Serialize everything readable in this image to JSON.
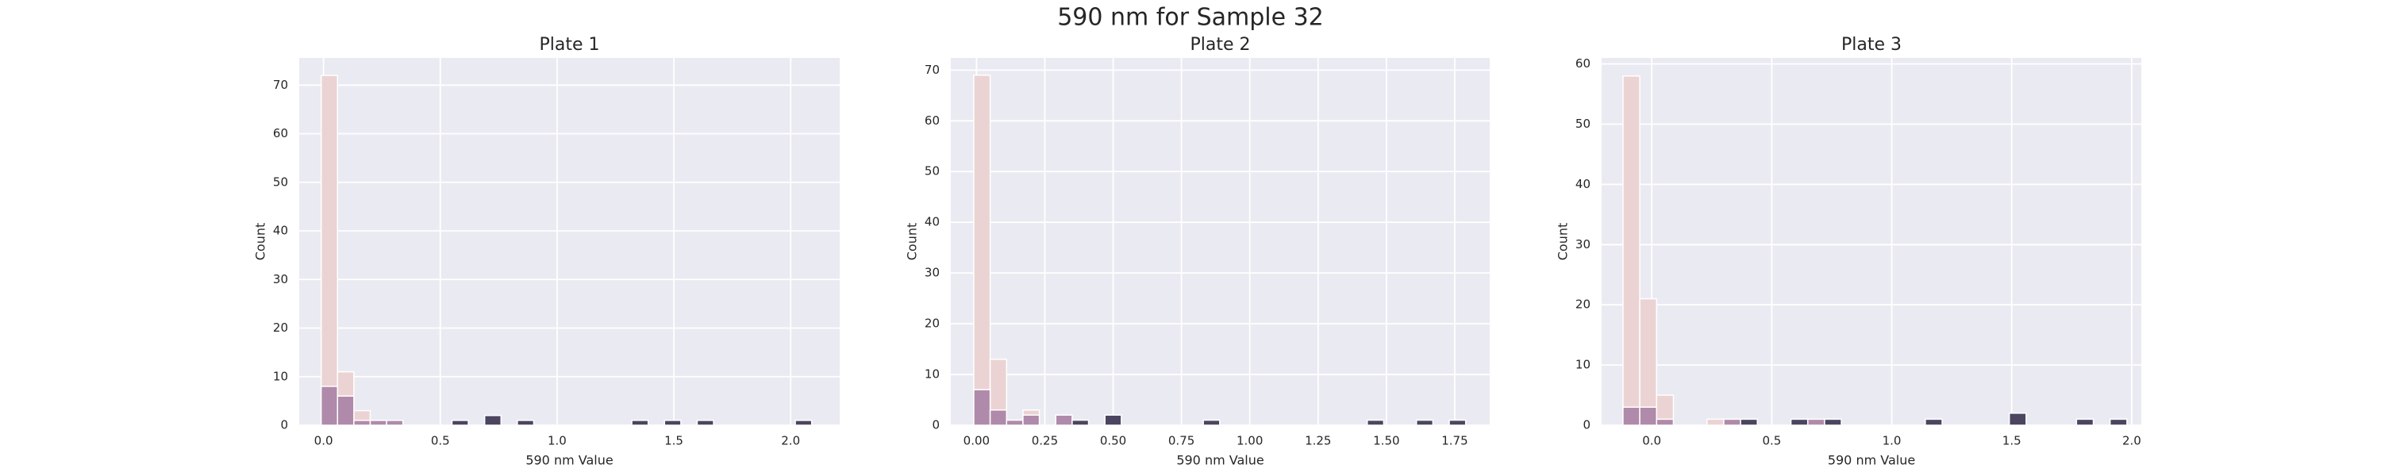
{
  "title": "590 nm for Sample 32",
  "chart_data": [
    {
      "type": "histogram",
      "title": "Plate 1",
      "xlabel": "590 nm Value",
      "ylabel": "Count",
      "grid": true,
      "bins": [
        -0.01,
        0.06,
        0.13,
        0.2,
        0.27,
        0.34,
        0.41,
        0.48,
        0.55,
        0.62,
        0.69,
        0.76,
        0.83,
        0.9,
        0.97,
        1.04,
        1.11,
        1.18,
        1.25,
        1.32,
        1.39,
        1.46,
        1.53,
        1.6,
        1.67,
        1.74,
        1.81,
        1.88,
        1.95,
        2.02,
        2.09
      ],
      "series": [
        {
          "color": "#ecd3d3",
          "values": [
            72,
            11,
            3,
            1,
            0,
            0,
            0,
            0,
            0,
            0,
            0,
            0,
            0,
            0,
            0,
            0,
            0,
            0,
            0,
            0,
            0,
            0,
            0,
            0,
            0,
            0,
            0,
            0,
            0,
            0
          ]
        },
        {
          "color": "#b08aaa",
          "values": [
            8,
            6,
            1,
            1,
            1,
            0,
            0,
            0,
            0,
            0,
            0,
            0,
            0,
            0,
            0,
            0,
            0,
            0,
            0,
            0,
            0,
            0,
            0,
            0,
            0,
            0,
            0,
            0,
            0,
            0
          ]
        },
        {
          "color": "#4c4560",
          "values": [
            0,
            0,
            0,
            0,
            0,
            0,
            0,
            0,
            1,
            0,
            2,
            0,
            1,
            0,
            0,
            0,
            0,
            0,
            0,
            1,
            0,
            1,
            0,
            1,
            0,
            0,
            0,
            0,
            0,
            1
          ]
        }
      ],
      "xlim": [
        -0.104,
        2.21
      ],
      "ylim": [
        0,
        75.6
      ],
      "xticks": [
        {
          "value": 0,
          "label": "0.0"
        },
        0.5,
        {
          "value": 1,
          "label": "1.0"
        },
        1.5,
        {
          "value": 2,
          "label": "2.0"
        }
      ],
      "yticks": [
        0,
        10,
        20,
        30,
        40,
        50,
        60,
        70
      ]
    },
    {
      "type": "histogram",
      "title": "Plate 2",
      "xlabel": "590 nm Value",
      "ylabel": "Count",
      "grid": true,
      "bins": [
        -0.01,
        0.05,
        0.11,
        0.17,
        0.23,
        0.29,
        0.35,
        0.41,
        0.47,
        0.53,
        0.59,
        0.65,
        0.71,
        0.77,
        0.83,
        0.89,
        0.95,
        1.01,
        1.07,
        1.13,
        1.19,
        1.25,
        1.31,
        1.37,
        1.43,
        1.49,
        1.55,
        1.61,
        1.67,
        1.73,
        1.79
      ],
      "series": [
        {
          "color": "#ecd3d3",
          "values": [
            69,
            13,
            1,
            3,
            0,
            0,
            0,
            0,
            0,
            0,
            0,
            0,
            0,
            0,
            0,
            0,
            0,
            0,
            0,
            0,
            0,
            0,
            0,
            0,
            0,
            0,
            0,
            0,
            0,
            0
          ]
        },
        {
          "color": "#b08aaa",
          "values": [
            7,
            3,
            1,
            2,
            0,
            2,
            0,
            0,
            0,
            0,
            0,
            0,
            0,
            0,
            0,
            0,
            0,
            0,
            0,
            0,
            0,
            0,
            0,
            0,
            0,
            0,
            0,
            0,
            0,
            0
          ]
        },
        {
          "color": "#4c4560",
          "values": [
            0,
            0,
            0,
            0,
            0,
            0,
            1,
            0,
            2,
            0,
            0,
            0,
            0,
            0,
            1,
            0,
            0,
            0,
            0,
            0,
            0,
            0,
            0,
            0,
            1,
            0,
            0,
            1,
            0,
            1
          ]
        }
      ],
      "xlim": [
        -0.094,
        1.878
      ],
      "ylim": [
        0,
        72.4
      ],
      "xticks": [
        {
          "value": 0,
          "label": "0.00"
        },
        0.25,
        {
          "value": 0.5,
          "label": "0.50"
        },
        0.75,
        {
          "value": 1,
          "label": "1.00"
        },
        1.25,
        {
          "value": 1.5,
          "label": "1.50"
        },
        1.75
      ],
      "yticks": [
        0,
        10,
        20,
        30,
        40,
        50,
        60,
        70
      ]
    },
    {
      "type": "histogram",
      "title": "Plate 3",
      "xlabel": "590 nm Value",
      "ylabel": "Count",
      "grid": true,
      "bins": [
        -0.12,
        -0.05,
        0.02,
        0.09,
        0.16,
        0.23,
        0.3,
        0.37,
        0.44,
        0.51,
        0.58,
        0.65,
        0.72,
        0.79,
        0.86,
        0.93,
        1.0,
        1.07,
        1.14,
        1.21,
        1.28,
        1.35,
        1.42,
        1.49,
        1.56,
        1.63,
        1.7,
        1.77,
        1.84,
        1.91,
        1.98
      ],
      "series": [
        {
          "color": "#ecd3d3",
          "values": [
            58,
            21,
            5,
            0,
            0,
            1,
            0,
            0,
            0,
            0,
            0,
            0,
            0,
            0,
            0,
            0,
            0,
            0,
            0,
            0,
            0,
            0,
            0,
            0,
            0,
            0,
            0,
            0,
            0,
            0
          ]
        },
        {
          "color": "#b08aaa",
          "values": [
            3,
            3,
            1,
            0,
            0,
            0,
            1,
            0,
            0,
            0,
            0,
            1,
            0,
            0,
            0,
            0,
            0,
            0,
            0,
            0,
            0,
            0,
            0,
            0,
            0,
            0,
            0,
            0,
            0,
            0
          ]
        },
        {
          "color": "#4c4560",
          "values": [
            0,
            0,
            0,
            0,
            0,
            0,
            0,
            1,
            0,
            0,
            1,
            0,
            1,
            0,
            0,
            0,
            0,
            0,
            1,
            0,
            0,
            0,
            0,
            2,
            0,
            0,
            0,
            1,
            0,
            1
          ]
        }
      ],
      "xlim": [
        -0.209,
        2.04
      ],
      "ylim": [
        0,
        61
      ],
      "xticks": [
        {
          "value": 0,
          "label": "0.0"
        },
        0.5,
        {
          "value": 1,
          "label": "1.0"
        },
        1.5,
        {
          "value": 2,
          "label": "2.0"
        }
      ],
      "yticks": [
        0,
        10,
        20,
        30,
        40,
        50,
        60
      ]
    }
  ]
}
